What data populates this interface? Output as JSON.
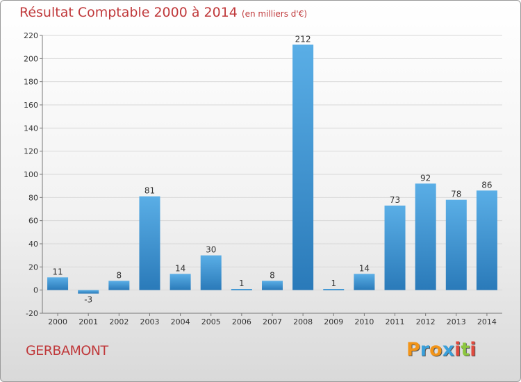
{
  "header": {
    "title": "Résultat Comptable 2000 à 2014",
    "unit": "(en milliers d'€)"
  },
  "footer": {
    "commune": "GERBAMONT",
    "logo": [
      "P",
      "r",
      "o",
      "x",
      "i",
      "t",
      "i"
    ],
    "logo_colors": [
      "#f29418",
      "#3aa0db",
      "#f29418",
      "#3aa0db",
      "#e04a3e",
      "#8dc63f",
      "#e04a3e"
    ]
  },
  "colors": {
    "title": "#c0393b",
    "bar_top": "#5aaee6",
    "bar_bottom": "#2a7ab9",
    "grid": "#d8d8d8"
  },
  "chart_data": {
    "type": "bar",
    "title": "Résultat Comptable 2000 à 2014",
    "ylabel": "en milliers d'€",
    "xlabel": "",
    "categories": [
      "2000",
      "2001",
      "2002",
      "2003",
      "2004",
      "2005",
      "2006",
      "2007",
      "2008",
      "2009",
      "2010",
      "2011",
      "2012",
      "2013",
      "2014"
    ],
    "values": [
      11,
      -3,
      8,
      81,
      14,
      30,
      1,
      8,
      212,
      1,
      14,
      73,
      92,
      78,
      86
    ],
    "ylim": [
      -20,
      220
    ],
    "yticks": [
      -20,
      0,
      20,
      40,
      60,
      80,
      100,
      120,
      140,
      160,
      180,
      200,
      220
    ],
    "grid": true
  }
}
